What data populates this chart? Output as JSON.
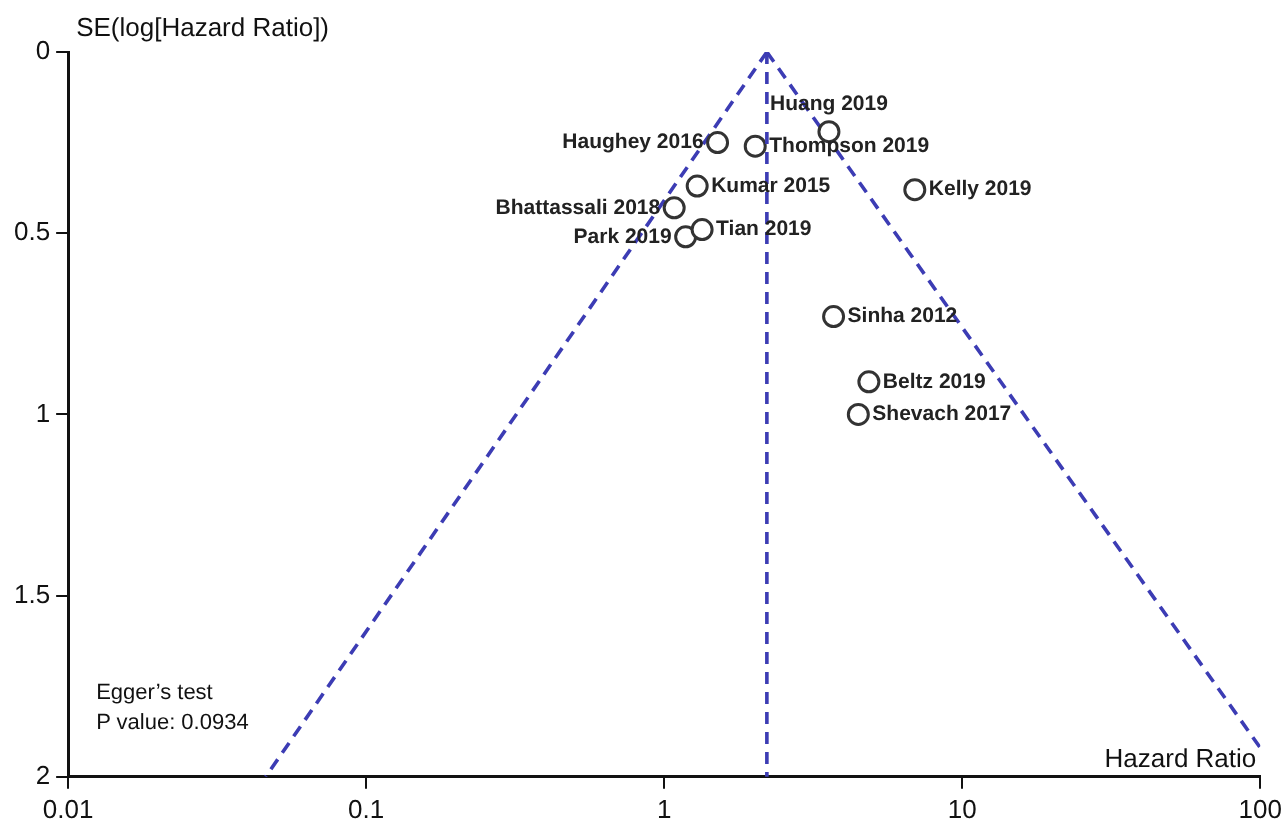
{
  "chart_data": {
    "type": "scatter",
    "xlabel": "Hazard Ratio",
    "ylabel": "SE(log[Hazard Ratio])",
    "log": "x",
    "xlim": [
      0.01,
      100
    ],
    "xticks": [
      0.01,
      0.1,
      1,
      10,
      100
    ],
    "ylim": [
      2,
      0
    ],
    "yticks": [
      0,
      0.5,
      1,
      1.5,
      2
    ],
    "grid": false,
    "legend": false,
    "marker": "circle",
    "series": [
      {
        "name": "Haughey 2016",
        "color": "#333333",
        "x": [
          1.51
        ],
        "values": [
          0.25
        ]
      },
      {
        "name": "Thompson 2019",
        "color": "#333333",
        "x": [
          2.02
        ],
        "values": [
          0.26
        ]
      },
      {
        "name": "Huang 2019",
        "color": "#333333",
        "x": [
          3.57
        ],
        "values": [
          0.22
        ]
      },
      {
        "name": "Kelly 2019",
        "color": "#333333",
        "x": [
          6.93
        ],
        "values": [
          0.38
        ]
      },
      {
        "name": "Kumar 2015",
        "color": "#333333",
        "x": [
          1.29
        ],
        "values": [
          0.37
        ]
      },
      {
        "name": "Bhattassali 2018",
        "color": "#333333",
        "x": [
          1.08
        ],
        "values": [
          0.43
        ]
      },
      {
        "name": "Tian 2019",
        "color": "#333333",
        "x": [
          1.34
        ],
        "values": [
          0.49
        ]
      },
      {
        "name": "Park 2019",
        "color": "#333333",
        "x": [
          1.18
        ],
        "values": [
          0.51
        ]
      },
      {
        "name": "Sinha 2012",
        "color": "#333333",
        "x": [
          3.7
        ],
        "values": [
          0.73
        ]
      },
      {
        "name": "Beltz 2019",
        "color": "#333333",
        "x": [
          4.86
        ],
        "values": [
          0.91
        ]
      },
      {
        "name": "Shevach 2017",
        "color": "#333333",
        "x": [
          4.48
        ],
        "values": [
          1.0
        ]
      },
      {
        "type": "line",
        "color": "#3c3cb4",
        "line_style": "dashed",
        "marker": "none",
        "x": [
          2.21,
          0.046
        ],
        "values": [
          0,
          2
        ]
      },
      {
        "type": "line",
        "color": "#3c3cb4",
        "line_style": "dashed",
        "marker": "none",
        "x": [
          2.21,
          100
        ],
        "values": [
          0,
          1.92
        ]
      }
    ],
    "ref_lines": [
      {
        "axis": "x",
        "value": 2.21,
        "color": "#3c3cb4",
        "line_style": "dashed"
      }
    ],
    "annotations": [
      "Egger’s test",
      "P value: 0.0934"
    ]
  }
}
